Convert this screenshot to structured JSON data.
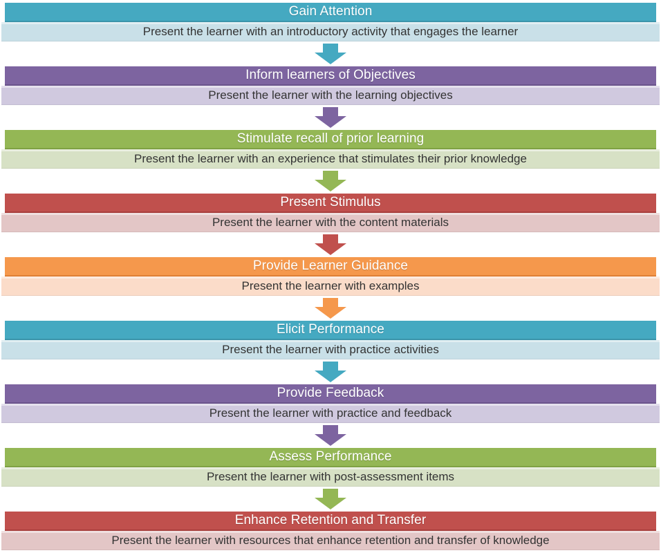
{
  "palette": {
    "teal": {
      "header": "#45A9C1",
      "light": "#C9E0E8",
      "border": "#3B94AA"
    },
    "purple": {
      "header": "#7D64A0",
      "light": "#D0C9DF",
      "border": "#6A548C"
    },
    "green": {
      "header": "#94B755",
      "light": "#D7E1C5",
      "border": "#7FA144"
    },
    "red": {
      "header": "#C0504D",
      "light": "#E3C6C6",
      "border": "#A83F3D"
    },
    "orange": {
      "header": "#F5984C",
      "light": "#FBDCC9",
      "border": "#DF7F35"
    }
  },
  "steps": [
    {
      "title": "Gain Attention",
      "description": "Present the learner with an introductory activity that engages the learner",
      "color": "teal"
    },
    {
      "title": "Inform learners of Objectives",
      "description": "Present the learner with the learning objectives",
      "color": "purple"
    },
    {
      "title": "Stimulate recall of prior learning",
      "description": "Present the learner with an experience that stimulates their prior knowledge",
      "color": "green"
    },
    {
      "title": "Present Stimulus",
      "description": "Present the learner with the content materials",
      "color": "red"
    },
    {
      "title": "Provide Learner Guidance",
      "description": "Present the learner with examples",
      "color": "orange"
    },
    {
      "title": "Elicit Performance",
      "description": "Present the learner with practice activities",
      "color": "teal"
    },
    {
      "title": "Provide Feedback",
      "description": "Present the learner with practice and feedback",
      "color": "purple"
    },
    {
      "title": "Assess Performance",
      "description": "Present the learner with post-assessment items",
      "color": "green"
    },
    {
      "title": "Enhance Retention and Transfer",
      "description": "Present the learner with resources that enhance retention and transfer of knowledge",
      "color": "red"
    }
  ]
}
